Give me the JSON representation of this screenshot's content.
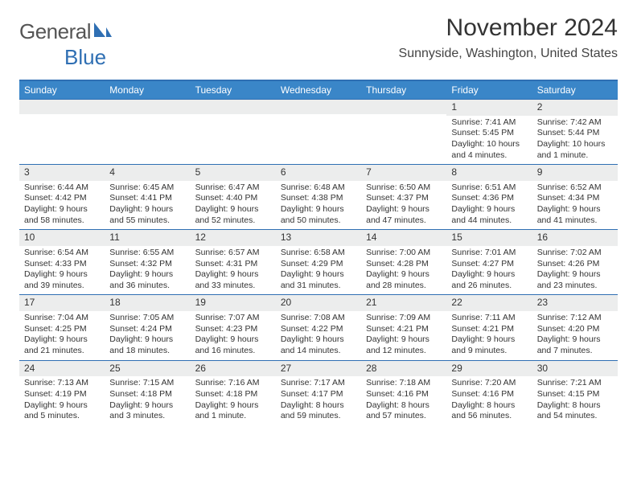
{
  "brand": {
    "main": "General",
    "sub": "Blue"
  },
  "title": "November 2024",
  "location": "Sunnyside, Washington, United States",
  "colors": {
    "header_bg": "#3a86c8",
    "border": "#2f6fb3",
    "daynum_bg": "#eceded",
    "text": "#333333"
  },
  "daysOfWeek": [
    "Sunday",
    "Monday",
    "Tuesday",
    "Wednesday",
    "Thursday",
    "Friday",
    "Saturday"
  ],
  "weeks": [
    [
      {
        "n": "",
        "sr": "",
        "ss": "",
        "dl": ""
      },
      {
        "n": "",
        "sr": "",
        "ss": "",
        "dl": ""
      },
      {
        "n": "",
        "sr": "",
        "ss": "",
        "dl": ""
      },
      {
        "n": "",
        "sr": "",
        "ss": "",
        "dl": ""
      },
      {
        "n": "",
        "sr": "",
        "ss": "",
        "dl": ""
      },
      {
        "n": "1",
        "sr": "Sunrise: 7:41 AM",
        "ss": "Sunset: 5:45 PM",
        "dl": "Daylight: 10 hours and 4 minutes."
      },
      {
        "n": "2",
        "sr": "Sunrise: 7:42 AM",
        "ss": "Sunset: 5:44 PM",
        "dl": "Daylight: 10 hours and 1 minute."
      }
    ],
    [
      {
        "n": "3",
        "sr": "Sunrise: 6:44 AM",
        "ss": "Sunset: 4:42 PM",
        "dl": "Daylight: 9 hours and 58 minutes."
      },
      {
        "n": "4",
        "sr": "Sunrise: 6:45 AM",
        "ss": "Sunset: 4:41 PM",
        "dl": "Daylight: 9 hours and 55 minutes."
      },
      {
        "n": "5",
        "sr": "Sunrise: 6:47 AM",
        "ss": "Sunset: 4:40 PM",
        "dl": "Daylight: 9 hours and 52 minutes."
      },
      {
        "n": "6",
        "sr": "Sunrise: 6:48 AM",
        "ss": "Sunset: 4:38 PM",
        "dl": "Daylight: 9 hours and 50 minutes."
      },
      {
        "n": "7",
        "sr": "Sunrise: 6:50 AM",
        "ss": "Sunset: 4:37 PM",
        "dl": "Daylight: 9 hours and 47 minutes."
      },
      {
        "n": "8",
        "sr": "Sunrise: 6:51 AM",
        "ss": "Sunset: 4:36 PM",
        "dl": "Daylight: 9 hours and 44 minutes."
      },
      {
        "n": "9",
        "sr": "Sunrise: 6:52 AM",
        "ss": "Sunset: 4:34 PM",
        "dl": "Daylight: 9 hours and 41 minutes."
      }
    ],
    [
      {
        "n": "10",
        "sr": "Sunrise: 6:54 AM",
        "ss": "Sunset: 4:33 PM",
        "dl": "Daylight: 9 hours and 39 minutes."
      },
      {
        "n": "11",
        "sr": "Sunrise: 6:55 AM",
        "ss": "Sunset: 4:32 PM",
        "dl": "Daylight: 9 hours and 36 minutes."
      },
      {
        "n": "12",
        "sr": "Sunrise: 6:57 AM",
        "ss": "Sunset: 4:31 PM",
        "dl": "Daylight: 9 hours and 33 minutes."
      },
      {
        "n": "13",
        "sr": "Sunrise: 6:58 AM",
        "ss": "Sunset: 4:29 PM",
        "dl": "Daylight: 9 hours and 31 minutes."
      },
      {
        "n": "14",
        "sr": "Sunrise: 7:00 AM",
        "ss": "Sunset: 4:28 PM",
        "dl": "Daylight: 9 hours and 28 minutes."
      },
      {
        "n": "15",
        "sr": "Sunrise: 7:01 AM",
        "ss": "Sunset: 4:27 PM",
        "dl": "Daylight: 9 hours and 26 minutes."
      },
      {
        "n": "16",
        "sr": "Sunrise: 7:02 AM",
        "ss": "Sunset: 4:26 PM",
        "dl": "Daylight: 9 hours and 23 minutes."
      }
    ],
    [
      {
        "n": "17",
        "sr": "Sunrise: 7:04 AM",
        "ss": "Sunset: 4:25 PM",
        "dl": "Daylight: 9 hours and 21 minutes."
      },
      {
        "n": "18",
        "sr": "Sunrise: 7:05 AM",
        "ss": "Sunset: 4:24 PM",
        "dl": "Daylight: 9 hours and 18 minutes."
      },
      {
        "n": "19",
        "sr": "Sunrise: 7:07 AM",
        "ss": "Sunset: 4:23 PM",
        "dl": "Daylight: 9 hours and 16 minutes."
      },
      {
        "n": "20",
        "sr": "Sunrise: 7:08 AM",
        "ss": "Sunset: 4:22 PM",
        "dl": "Daylight: 9 hours and 14 minutes."
      },
      {
        "n": "21",
        "sr": "Sunrise: 7:09 AM",
        "ss": "Sunset: 4:21 PM",
        "dl": "Daylight: 9 hours and 12 minutes."
      },
      {
        "n": "22",
        "sr": "Sunrise: 7:11 AM",
        "ss": "Sunset: 4:21 PM",
        "dl": "Daylight: 9 hours and 9 minutes."
      },
      {
        "n": "23",
        "sr": "Sunrise: 7:12 AM",
        "ss": "Sunset: 4:20 PM",
        "dl": "Daylight: 9 hours and 7 minutes."
      }
    ],
    [
      {
        "n": "24",
        "sr": "Sunrise: 7:13 AM",
        "ss": "Sunset: 4:19 PM",
        "dl": "Daylight: 9 hours and 5 minutes."
      },
      {
        "n": "25",
        "sr": "Sunrise: 7:15 AM",
        "ss": "Sunset: 4:18 PM",
        "dl": "Daylight: 9 hours and 3 minutes."
      },
      {
        "n": "26",
        "sr": "Sunrise: 7:16 AM",
        "ss": "Sunset: 4:18 PM",
        "dl": "Daylight: 9 hours and 1 minute."
      },
      {
        "n": "27",
        "sr": "Sunrise: 7:17 AM",
        "ss": "Sunset: 4:17 PM",
        "dl": "Daylight: 8 hours and 59 minutes."
      },
      {
        "n": "28",
        "sr": "Sunrise: 7:18 AM",
        "ss": "Sunset: 4:16 PM",
        "dl": "Daylight: 8 hours and 57 minutes."
      },
      {
        "n": "29",
        "sr": "Sunrise: 7:20 AM",
        "ss": "Sunset: 4:16 PM",
        "dl": "Daylight: 8 hours and 56 minutes."
      },
      {
        "n": "30",
        "sr": "Sunrise: 7:21 AM",
        "ss": "Sunset: 4:15 PM",
        "dl": "Daylight: 8 hours and 54 minutes."
      }
    ]
  ]
}
